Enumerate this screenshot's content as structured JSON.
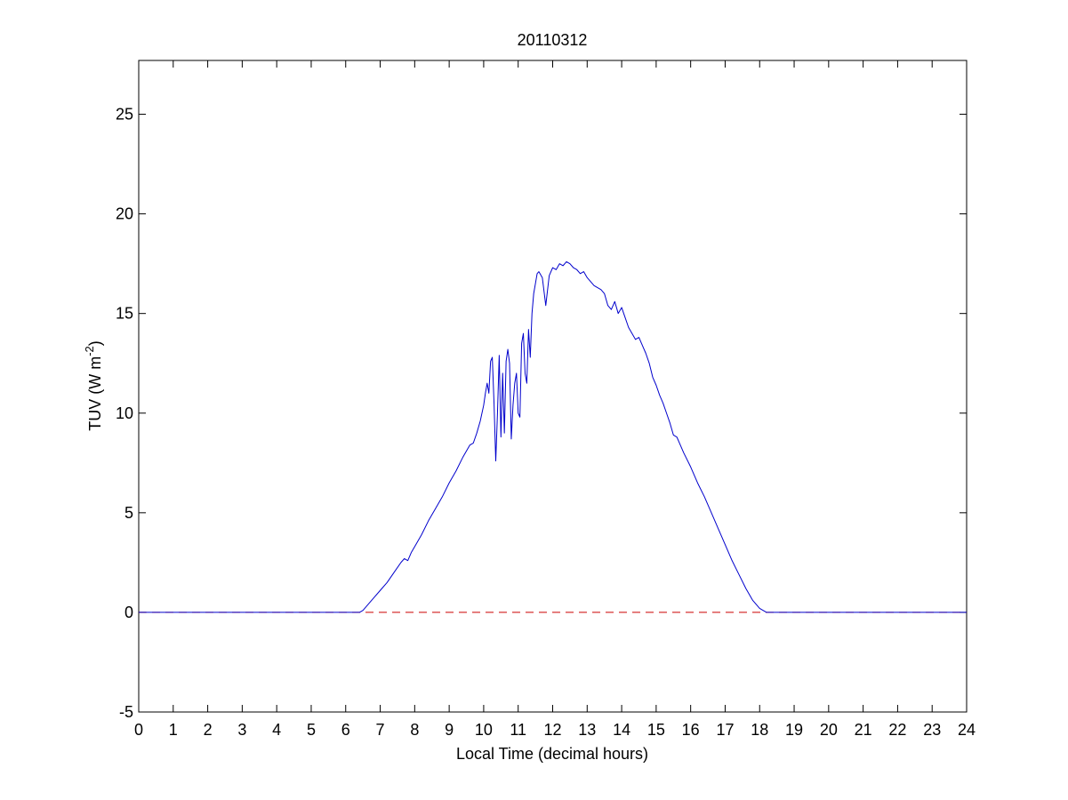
{
  "chart_data": {
    "type": "line",
    "title": "20110312",
    "xlabel": "Local Time (decimal hours)",
    "ylabel": {
      "main": "TUV (W m",
      "sup": "-2",
      "end": ")"
    },
    "xlim": [
      0,
      24
    ],
    "ylim": [
      -5,
      27.7
    ],
    "xticks": [
      0,
      1,
      2,
      3,
      4,
      5,
      6,
      7,
      8,
      9,
      10,
      11,
      12,
      13,
      14,
      15,
      16,
      17,
      18,
      19,
      20,
      21,
      22,
      23,
      24
    ],
    "yticks": [
      -5,
      0,
      5,
      10,
      15,
      20,
      25
    ],
    "grid": false,
    "legend": "none",
    "colors": {
      "series": "#0000cc",
      "baseline": "#cc0000",
      "axes": "#000000",
      "background": "#ffffff"
    },
    "series": [
      {
        "style": "solid",
        "x": [
          0,
          6.4,
          6.5,
          6.6,
          6.8,
          7.0,
          7.2,
          7.4,
          7.6,
          7.7,
          7.8,
          7.9,
          8.0,
          8.2,
          8.4,
          8.6,
          8.8,
          9.0,
          9.2,
          9.4,
          9.5,
          9.6,
          9.7,
          9.8,
          9.9,
          10.0,
          10.05,
          10.1,
          10.15,
          10.2,
          10.25,
          10.3,
          10.35,
          10.4,
          10.45,
          10.5,
          10.55,
          10.6,
          10.65,
          10.7,
          10.75,
          10.8,
          10.85,
          10.9,
          10.95,
          11.0,
          11.05,
          11.1,
          11.15,
          11.2,
          11.25,
          11.3,
          11.35,
          11.4,
          11.45,
          11.5,
          11.55,
          11.6,
          11.7,
          11.8,
          11.9,
          12.0,
          12.1,
          12.2,
          12.3,
          12.4,
          12.5,
          12.6,
          12.7,
          12.8,
          12.9,
          13.0,
          13.1,
          13.2,
          13.3,
          13.4,
          13.5,
          13.6,
          13.7,
          13.8,
          13.9,
          14.0,
          14.1,
          14.2,
          14.3,
          14.4,
          14.5,
          14.6,
          14.7,
          14.8,
          14.9,
          15.0,
          15.1,
          15.2,
          15.3,
          15.4,
          15.5,
          15.6,
          15.8,
          16.0,
          16.2,
          16.4,
          16.6,
          16.8,
          17.0,
          17.2,
          17.4,
          17.6,
          17.8,
          18.0,
          18.2,
          18.3,
          18.4,
          24
        ],
        "y": [
          0,
          0,
          0.1,
          0.3,
          0.7,
          1.1,
          1.5,
          2.0,
          2.5,
          2.7,
          2.6,
          3.0,
          3.3,
          3.9,
          4.6,
          5.2,
          5.8,
          6.5,
          7.1,
          7.8,
          8.1,
          8.4,
          8.5,
          9.0,
          9.6,
          10.4,
          11.0,
          11.5,
          11.0,
          12.6,
          12.8,
          10.5,
          7.6,
          10.0,
          12.9,
          8.8,
          12.0,
          9.0,
          12.6,
          13.2,
          12.5,
          8.7,
          10.4,
          11.5,
          12.0,
          10.0,
          9.8,
          13.5,
          14.0,
          12.0,
          11.5,
          14.2,
          12.8,
          15.0,
          16.0,
          16.5,
          17.0,
          17.1,
          16.8,
          15.4,
          16.9,
          17.3,
          17.2,
          17.5,
          17.4,
          17.6,
          17.5,
          17.3,
          17.2,
          17.0,
          17.1,
          16.8,
          16.6,
          16.4,
          16.3,
          16.2,
          16.0,
          15.4,
          15.2,
          15.6,
          15.0,
          15.3,
          14.8,
          14.3,
          14.0,
          13.7,
          13.8,
          13.4,
          13.0,
          12.5,
          11.8,
          11.4,
          10.9,
          10.5,
          10.0,
          9.5,
          8.9,
          8.8,
          8.0,
          7.3,
          6.5,
          5.8,
          5.0,
          4.2,
          3.4,
          2.6,
          1.9,
          1.2,
          0.6,
          0.2,
          0.0,
          0.0,
          0.0,
          0
        ]
      },
      {
        "style": "dashed",
        "x": [
          0,
          24
        ],
        "y": [
          0,
          0
        ]
      }
    ]
  }
}
